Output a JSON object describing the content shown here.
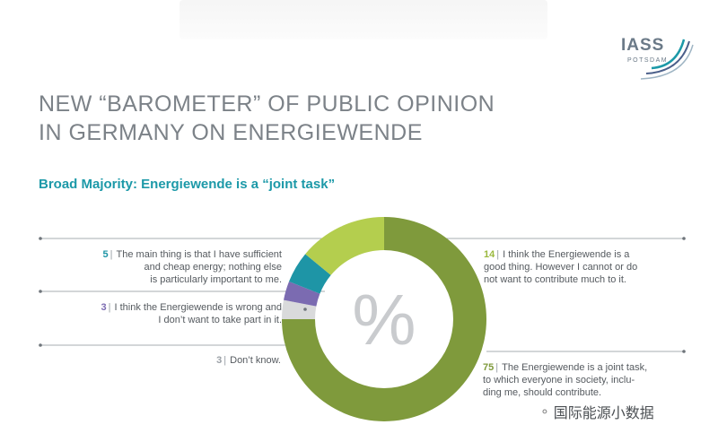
{
  "title_lines": [
    "NEW “BAROMETER” OF PUBLIC OPINION",
    "IN GERMANY ON ENERGIEWENDE"
  ],
  "subtitle": "Broad Majority: Energiewende is a “joint task”",
  "logo": {
    "word": "IASS",
    "sub": "POTSDAM"
  },
  "center_symbol": "%",
  "watermark": {
    "icon": "wechat-icon",
    "text": "国际能源小数据"
  },
  "chart_data": {
    "type": "pie",
    "variant": "donut",
    "unit": "%",
    "slices": [
      {
        "value": 75,
        "label": "The Energiewende is a joint task, to which everyone in society, including me, should contribute.",
        "color": "#7f9a3c"
      },
      {
        "value": 3,
        "label": "Don’t know.",
        "color": "#d9dadb"
      },
      {
        "value": 3,
        "label": "I think the Energiewende is wrong and I don’t want to take part in it.",
        "color": "#7b6bb1"
      },
      {
        "value": 5,
        "label": "The main thing is that I have sufficient and cheap energy; nothing else is particularly important to me.",
        "color": "#1e95a6"
      },
      {
        "value": 14,
        "label": "I think the Energiewende is a good thing. However I cannot or do not want to contribute much to it.",
        "color": "#b4ce4e"
      }
    ],
    "annotations": [
      {
        "value": "14",
        "lines": [
          "I think the Energiewende is a",
          "good thing. However I cannot or do",
          "not want to contribute much to it."
        ]
      },
      {
        "value": "75",
        "lines": [
          "The Energiewende is a joint task,",
          "to which everyone in society, inclu-",
          "ding me, should contribute."
        ]
      },
      {
        "value": "5",
        "lines": [
          "The main thing is that I have sufficient",
          "and cheap energy; nothing else",
          "is particularly important to me."
        ]
      },
      {
        "value": "3",
        "lines": [
          "I think the Energiewende is wrong and",
          "I don’t want to take part in it."
        ]
      },
      {
        "value": "3",
        "lines": [
          "Don’t know."
        ]
      }
    ]
  }
}
